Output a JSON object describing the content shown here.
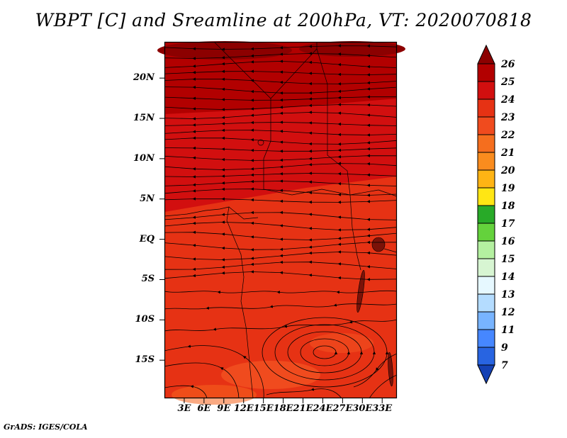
{
  "title": "WBPT [C] and Sreamline at 200hPa, VT: 2020070818",
  "credit": "GrADS: IGES/COLA",
  "chart_data": {
    "type": "heatmap",
    "subtype": "shaded-contour-map-with-streamline-overlay",
    "title": "WBPT [C] and Sreamline at 200hPa, VT: 2020070818",
    "variable": "WBPT",
    "units": "C",
    "level": "200hPa",
    "valid_time": "2020070818",
    "overlay": "streamlines",
    "x_ticks": [
      "3E",
      "6E",
      "9E",
      "12E",
      "15E",
      "18E",
      "21E",
      "24E",
      "27E",
      "30E",
      "33E"
    ],
    "y_ticks": [
      "20N",
      "15N",
      "10N",
      "5N",
      "EQ",
      "5S",
      "10S",
      "15S"
    ],
    "lon_range_deg_east": [
      0,
      35
    ],
    "lat_range_deg": [
      -19.5,
      24.5
    ],
    "grid": "off",
    "legend_position": "right-colorbar",
    "colorbar": {
      "levels": [
        7,
        9,
        11,
        12,
        13,
        14,
        15,
        16,
        17,
        18,
        19,
        20,
        21,
        22,
        23,
        24,
        25,
        26
      ],
      "colors_bottom_to_top": [
        "#1441b4",
        "#2864e1",
        "#4687ff",
        "#78b4ff",
        "#b4dcff",
        "#e6f8ff",
        "#d7f5d2",
        "#b4f0a0",
        "#64d23c",
        "#28aa28",
        "#ffe614",
        "#ffb414",
        "#fa8c1e",
        "#f56e1e",
        "#f04b1e",
        "#e63214",
        "#d20f0f",
        "#b20000",
        "#8c0000"
      ]
    },
    "field_summary": [
      {
        "region": "north of 18N",
        "approx_wbpt_c": "25-26"
      },
      {
        "region": "8N to 18N",
        "approx_wbpt_c": "24-25"
      },
      {
        "region": "south of 8N",
        "approx_wbpt_c": "23-24"
      }
    ],
    "flow_features": [
      {
        "type": "westward easterly streamlines",
        "region": "5N to 23N"
      },
      {
        "type": "closed anticyclonic circulation",
        "approx_center": "24E, 14S"
      }
    ]
  }
}
